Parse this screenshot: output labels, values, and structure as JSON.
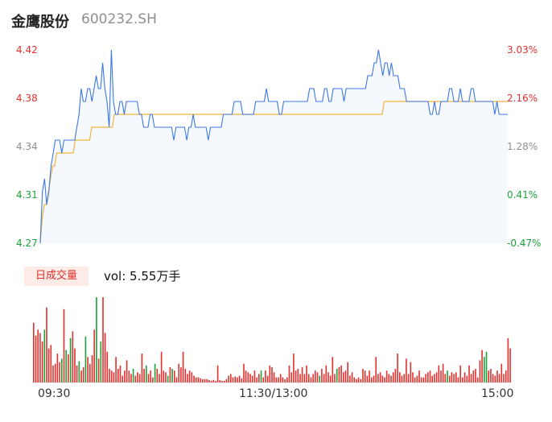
{
  "header": {
    "name": "金鹰股份",
    "code": "600232.SH"
  },
  "price_axis": {
    "left_ticks": [
      "4.42",
      "4.38",
      "4.34",
      "4.31",
      "4.27"
    ],
    "right_ticks": [
      "3.03%",
      "2.16%",
      "1.28%",
      "0.41%",
      "-0.47%"
    ],
    "tick_colors": [
      "#e1322f",
      "#e1322f",
      "#8f8f8f",
      "#1aa33a",
      "#1aa33a"
    ]
  },
  "volume": {
    "tag": "日成交量",
    "readout": "vol: 5.55万手"
  },
  "time_axis": {
    "labels": [
      "09:30",
      "11:30/13:00",
      "15:00"
    ]
  },
  "colors": {
    "price_line": "#3c78e6",
    "avg_line": "#f0b43c",
    "up": "#e1322f",
    "down": "#1aa33a",
    "fill": "#f5f8fd"
  },
  "chart_data": [
    {
      "type": "line",
      "xlabel": "",
      "ylabel": "",
      "ylim": [
        4.27,
        4.42
      ],
      "x_range": [
        "09:30",
        "15:00"
      ],
      "grid": false,
      "series": [
        {
          "values": [
            4.27,
            4.31,
            4.32,
            4.3,
            4.31,
            4.33,
            4.34,
            4.35,
            4.35,
            4.35,
            4.34,
            4.35,
            4.35,
            4.35,
            4.35,
            4.35,
            4.35,
            4.36,
            4.37,
            4.39,
            4.38,
            4.38,
            4.39,
            4.39,
            4.38,
            4.39,
            4.4,
            4.39,
            4.39,
            4.41,
            4.39,
            4.38,
            4.36,
            4.42,
            4.38,
            4.37,
            4.37,
            4.38,
            4.38,
            4.37,
            4.38,
            4.38,
            4.38,
            4.38,
            4.38,
            4.38,
            4.37,
            4.37,
            4.36,
            4.36,
            4.36,
            4.37,
            4.37,
            4.36,
            4.36,
            4.36,
            4.36,
            4.36,
            4.36,
            4.36,
            4.36,
            4.36,
            4.35,
            4.36,
            4.36,
            4.36,
            4.36,
            4.36,
            4.35,
            4.36,
            4.36,
            4.37,
            4.36,
            4.36,
            4.36,
            4.36,
            4.36,
            4.36,
            4.35,
            4.36,
            4.36,
            4.36,
            4.36,
            4.36,
            4.36,
            4.37,
            4.37,
            4.37,
            4.37,
            4.37,
            4.38,
            4.38,
            4.38,
            4.38,
            4.37,
            4.37,
            4.37,
            4.37,
            4.37,
            4.37,
            4.38,
            4.38,
            4.38,
            4.38,
            4.38,
            4.39,
            4.38,
            4.38,
            4.38,
            4.38,
            4.38,
            4.37,
            4.37,
            4.38,
            4.38,
            4.38,
            4.38,
            4.38,
            4.38,
            4.38,
            4.38,
            4.38,
            4.38,
            4.38,
            4.38,
            4.39,
            4.39,
            4.39,
            4.38,
            4.38,
            4.38,
            4.38,
            4.39,
            4.39,
            4.38,
            4.38,
            4.39,
            4.39,
            4.39,
            4.39,
            4.39,
            4.38,
            4.39,
            4.39,
            4.39,
            4.39,
            4.39,
            4.39,
            4.39,
            4.39,
            4.39,
            4.39,
            4.4,
            4.4,
            4.4,
            4.41,
            4.41,
            4.42,
            4.41,
            4.4,
            4.41,
            4.41,
            4.4,
            4.41,
            4.4,
            4.4,
            4.4,
            4.39,
            4.39,
            4.39,
            4.38,
            4.38,
            4.38,
            4.38,
            4.38,
            4.38,
            4.38,
            4.38,
            4.38,
            4.38,
            4.38,
            4.37,
            4.37,
            4.38,
            4.37,
            4.37,
            4.38,
            4.38,
            4.38,
            4.38,
            4.39,
            4.39,
            4.38,
            4.38,
            4.38,
            4.39,
            4.38,
            4.38,
            4.38,
            4.38,
            4.39,
            4.39,
            4.38,
            4.38,
            4.38,
            4.38,
            4.38,
            4.38,
            4.38,
            4.38,
            4.38,
            4.37,
            4.38,
            4.37,
            4.37,
            4.37,
            4.37,
            4.37
          ]
        },
        {
          "values": [
            4.27,
            4.29,
            4.3,
            4.3,
            4.31,
            4.32,
            4.33,
            4.33,
            4.34,
            4.34,
            4.34,
            4.34,
            4.34,
            4.34,
            4.34,
            4.34,
            4.34,
            4.35,
            4.35,
            4.35,
            4.35,
            4.35,
            4.35,
            4.35,
            4.35,
            4.36,
            4.36,
            4.36,
            4.36,
            4.36,
            4.36,
            4.36,
            4.36,
            4.36,
            4.36,
            4.36,
            4.37,
            4.37,
            4.37,
            4.37,
            4.37,
            4.37,
            4.37,
            4.37,
            4.37,
            4.37,
            4.37,
            4.37,
            4.37,
            4.37,
            4.37,
            4.37,
            4.37,
            4.37,
            4.37,
            4.37,
            4.37,
            4.37,
            4.37,
            4.37,
            4.37,
            4.37,
            4.37,
            4.37,
            4.37,
            4.37,
            4.37,
            4.37,
            4.37,
            4.37,
            4.37,
            4.37,
            4.37,
            4.37,
            4.37,
            4.37,
            4.37,
            4.37,
            4.37,
            4.37,
            4.37,
            4.37,
            4.37,
            4.37,
            4.37,
            4.37,
            4.37,
            4.37,
            4.37,
            4.37,
            4.37,
            4.37,
            4.37,
            4.37,
            4.37,
            4.37,
            4.37,
            4.37,
            4.37,
            4.37,
            4.37,
            4.37,
            4.37,
            4.37,
            4.37,
            4.37,
            4.37,
            4.37,
            4.37,
            4.37,
            4.37,
            4.37,
            4.37,
            4.37,
            4.37,
            4.37,
            4.37,
            4.37,
            4.37,
            4.37,
            4.37,
            4.37,
            4.37,
            4.37,
            4.37,
            4.37,
            4.37,
            4.37,
            4.37,
            4.37,
            4.37,
            4.37,
            4.37,
            4.37,
            4.37,
            4.37,
            4.37,
            4.37,
            4.37,
            4.37,
            4.37,
            4.37,
            4.37,
            4.37,
            4.37,
            4.37,
            4.37,
            4.37,
            4.37,
            4.37,
            4.37,
            4.37,
            4.37,
            4.37,
            4.37,
            4.37,
            4.37,
            4.37,
            4.37,
            4.37,
            4.37,
            4.37,
            4.37,
            4.37,
            4.37,
            4.37,
            4.37,
            4.38,
            4.38,
            4.38,
            4.38,
            4.38,
            4.38,
            4.38,
            4.38,
            4.38,
            4.38,
            4.38,
            4.38,
            4.38,
            4.38,
            4.38,
            4.38,
            4.38,
            4.38,
            4.38,
            4.38,
            4.38,
            4.38,
            4.38,
            4.38,
            4.38,
            4.38,
            4.38,
            4.38,
            4.38,
            4.38,
            4.38,
            4.38,
            4.38,
            4.38,
            4.38,
            4.38,
            4.38,
            4.38,
            4.38,
            4.38,
            4.38,
            4.38,
            4.38,
            4.38,
            4.38,
            4.38,
            4.38,
            4.38,
            4.38,
            4.38,
            4.38,
            4.38,
            4.38,
            4.38,
            4.38,
            4.38,
            4.38,
            4.38,
            4.38,
            4.38,
            4.38
          ]
        }
      ]
    },
    {
      "type": "bar",
      "xlabel": "",
      "ylabel": "",
      "ylim": [
        0,
        100
      ],
      "values": [
        70,
        55,
        62,
        58,
        48,
        62,
        88,
        40,
        44,
        20,
        22,
        34,
        24,
        28,
        86,
        38,
        33,
        52,
        60,
        40,
        20,
        25,
        14,
        18,
        54,
        30,
        22,
        32,
        62,
        100,
        28,
        48,
        100,
        58,
        36,
        16,
        14,
        12,
        30,
        16,
        20,
        8,
        14,
        26,
        14,
        10,
        16,
        8,
        12,
        10,
        34,
        16,
        20,
        10,
        14,
        6,
        22,
        16,
        10,
        36,
        14,
        12,
        8,
        18,
        16,
        14,
        6,
        22,
        18,
        36,
        16,
        10,
        14,
        12,
        8,
        6,
        6,
        5,
        4,
        4,
        4,
        3,
        2,
        3,
        2,
        20,
        3,
        2,
        2,
        4,
        8,
        10,
        6,
        7,
        6,
        8,
        5,
        22,
        14,
        12,
        10,
        8,
        14,
        6,
        10,
        14,
        6,
        14,
        8,
        20,
        18,
        12,
        6,
        6,
        10,
        6,
        4,
        6,
        20,
        12,
        34,
        14,
        16,
        10,
        18,
        10,
        20,
        10,
        6,
        10,
        14,
        12,
        8,
        16,
        10,
        20,
        12,
        8,
        30,
        10,
        16,
        18,
        20,
        12,
        14,
        24,
        8,
        12,
        6,
        4,
        6,
        4,
        16,
        14,
        8,
        14,
        6,
        8,
        30,
        10,
        12,
        8,
        6,
        14,
        10,
        8,
        12,
        16,
        34,
        12,
        8,
        10,
        28,
        10,
        24,
        12,
        6,
        8,
        14,
        6,
        6,
        10,
        12,
        14,
        8,
        10,
        12,
        20,
        14,
        22,
        10,
        14,
        8,
        12,
        10,
        12,
        6,
        20,
        6,
        12,
        8,
        20,
        10,
        14,
        16,
        6,
        26,
        38,
        30,
        36,
        14,
        16,
        10,
        8,
        14,
        10,
        22,
        10,
        14,
        52,
        40
      ],
      "colors": [
        "up",
        "up",
        "up",
        "up",
        "up",
        "down",
        "up",
        "up",
        "up",
        "up",
        "up",
        "up",
        "up",
        "down",
        "up",
        "down",
        "up",
        "down",
        "up",
        "up",
        "up",
        "down",
        "up",
        "up",
        "down",
        "up",
        "up",
        "up",
        "up",
        "down",
        "up",
        "down",
        "up",
        "up",
        "up",
        "up",
        "up",
        "up",
        "up",
        "up",
        "up",
        "up",
        "up",
        "up",
        "up",
        "up",
        "down",
        "up",
        "up",
        "up",
        "up",
        "up",
        "down",
        "up",
        "up",
        "up",
        "down",
        "up",
        "up",
        "up",
        "up",
        "up",
        "down",
        "up",
        "down",
        "up",
        "up",
        "up",
        "up",
        "up",
        "up",
        "up",
        "up",
        "up",
        "up",
        "up",
        "up",
        "up",
        "up",
        "up",
        "up",
        "up",
        "up",
        "up",
        "up",
        "up",
        "up",
        "up",
        "up",
        "up",
        "up",
        "up",
        "up",
        "up",
        "up",
        "up",
        "up",
        "up",
        "up",
        "up",
        "up",
        "up",
        "up",
        "up",
        "up",
        "down",
        "up",
        "up",
        "up",
        "up",
        "up",
        "up",
        "up",
        "up",
        "up",
        "up",
        "up",
        "up",
        "up",
        "up",
        "up",
        "up",
        "up",
        "up",
        "up",
        "up",
        "up",
        "up",
        "up",
        "up",
        "up",
        "up",
        "down",
        "up",
        "up",
        "up",
        "up",
        "up",
        "up",
        "up",
        "down",
        "up",
        "up",
        "up",
        "up",
        "up",
        "up",
        "up",
        "up",
        "up",
        "up",
        "up",
        "up",
        "up",
        "up",
        "up",
        "up",
        "up",
        "up",
        "up",
        "up",
        "up",
        "up",
        "up",
        "up",
        "up",
        "up",
        "up",
        "up",
        "up",
        "up",
        "up",
        "up",
        "up",
        "up",
        "up",
        "up",
        "up",
        "up",
        "up",
        "up",
        "up",
        "up",
        "up",
        "up",
        "up",
        "up",
        "up",
        "up",
        "up",
        "up",
        "down",
        "up",
        "up",
        "up",
        "up",
        "up",
        "up",
        "up",
        "up",
        "up",
        "up",
        "up",
        "up",
        "up",
        "up",
        "up",
        "up",
        "down",
        "down",
        "up",
        "up",
        "up",
        "up",
        "up",
        "up",
        "up",
        "up",
        "up",
        "up",
        "up",
        "up",
        "up"
      ]
    }
  ]
}
